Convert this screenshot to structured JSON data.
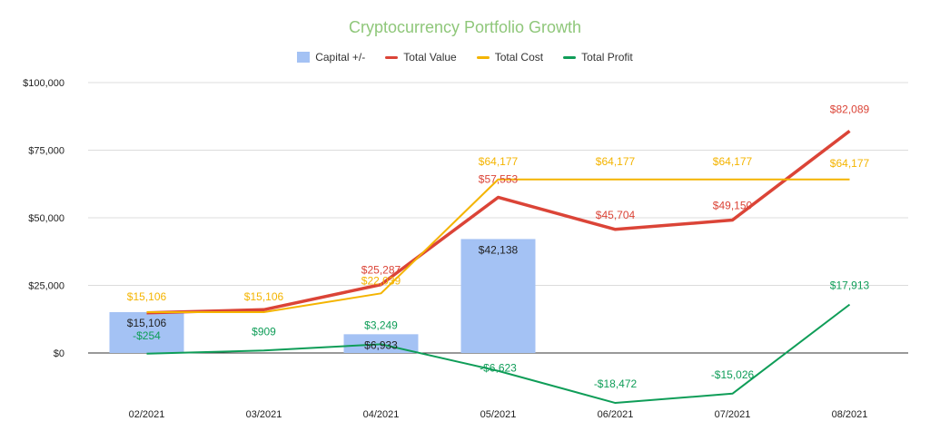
{
  "chart_data": {
    "type": "bar",
    "title": "Cryptocurrency Portfolio Growth",
    "categories": [
      "02/2021",
      "03/2021",
      "04/2021",
      "05/2021",
      "06/2021",
      "07/2021",
      "08/2021"
    ],
    "y_ticks": [
      "$0",
      "$25,000",
      "$50,000",
      "$75,000",
      "$100,000"
    ],
    "ylim": [
      -20000,
      100000
    ],
    "grid": true,
    "legend_position": "top",
    "series": [
      {
        "name": "Capital +/-",
        "kind": "bar",
        "color": "#a4c2f4",
        "values": [
          15106,
          null,
          6933,
          42138,
          null,
          null,
          null
        ],
        "labels": [
          "$15,106",
          "",
          "$6,933",
          "$42,138",
          "",
          "",
          ""
        ]
      },
      {
        "name": "Total Value",
        "kind": "line",
        "color": "#db4437",
        "values": [
          14852,
          16015,
          25287,
          57553,
          45704,
          49150,
          82089
        ],
        "labels": [
          "",
          "",
          "$25,287",
          "$57,553",
          "$45,704",
          "$49,150",
          "$82,089"
        ]
      },
      {
        "name": "Total Cost",
        "kind": "line",
        "color": "#f4b400",
        "values": [
          15106,
          15106,
          22039,
          64177,
          64177,
          64177,
          64177
        ],
        "labels": [
          "$15,106",
          "$15,106",
          "$22,039",
          "$64,177",
          "$64,177",
          "$64,177",
          "$64,177"
        ]
      },
      {
        "name": "Total Profit",
        "kind": "line",
        "color": "#0f9d58",
        "values": [
          -254,
          909,
          3249,
          -6623,
          -18472,
          -15026,
          17913
        ],
        "labels": [
          "-$254",
          "$909",
          "$3,249",
          "-$6,623",
          "-$18,472",
          "-$15,026",
          "$17,913"
        ]
      }
    ]
  }
}
